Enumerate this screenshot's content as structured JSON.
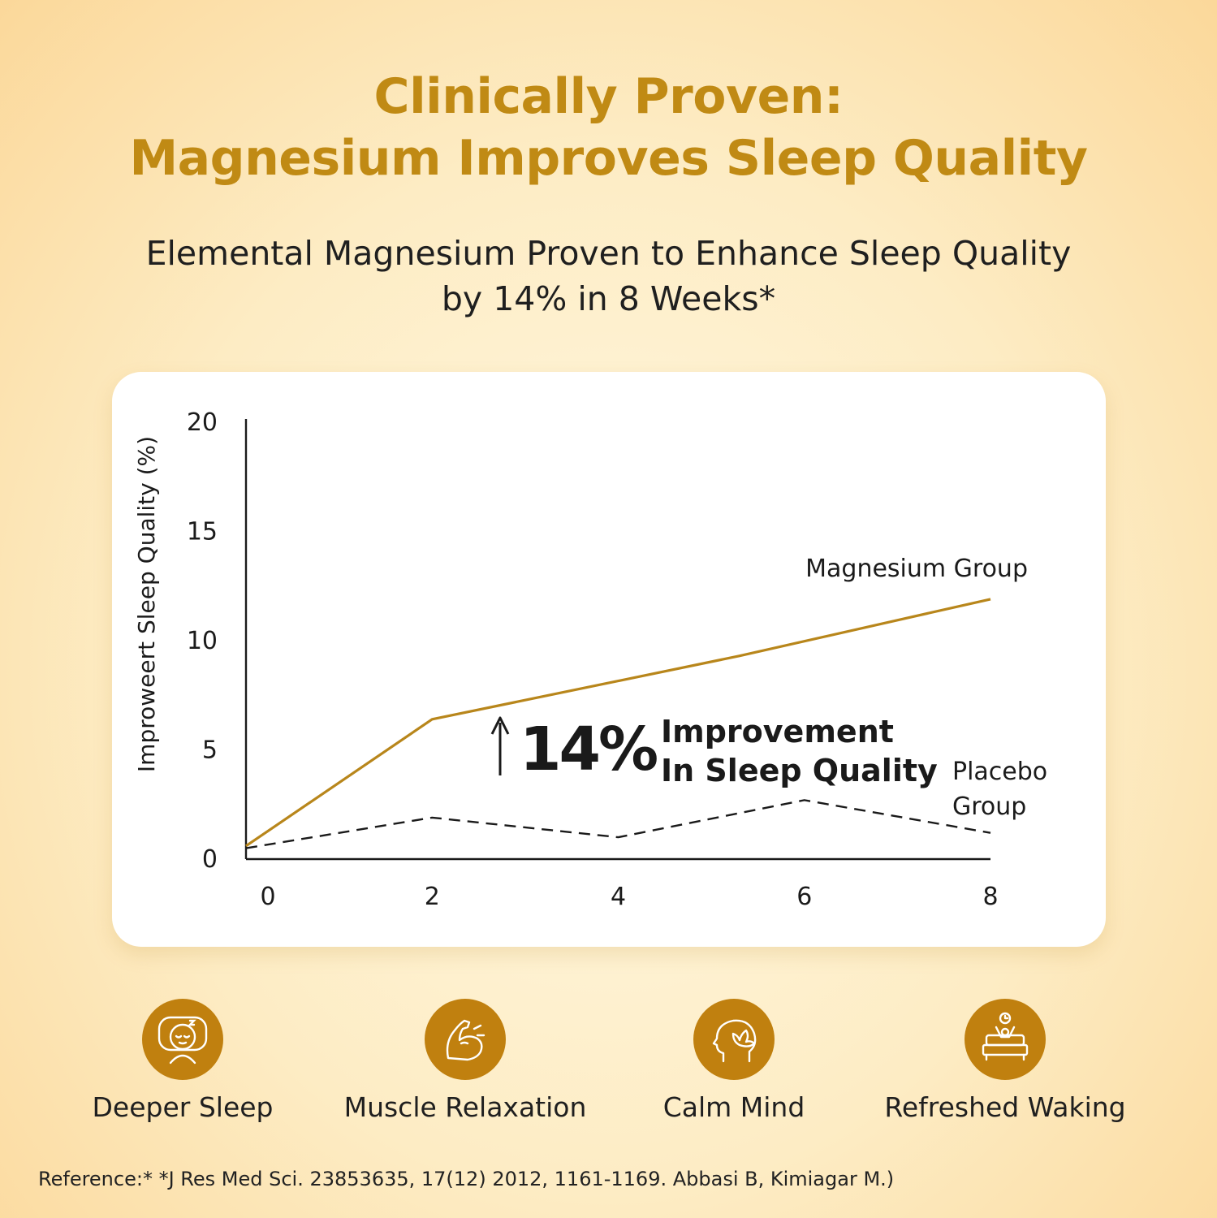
{
  "header": {
    "title_line1": "Clinically Proven:",
    "title_line2": "Magnesium Improves Sleep Quality",
    "subtitle_line1": "Elemental Magnesium Proven to Enhance Sleep Quality",
    "subtitle_line2": "by 14% in 8 Weeks*"
  },
  "chart_data": {
    "type": "line",
    "ylabel": "Improweert Sleep Quality (%)",
    "xlabel": "",
    "ylim": [
      0,
      20
    ],
    "xlim": [
      0,
      8
    ],
    "yticks": [
      "0",
      "5",
      "10",
      "15",
      "20"
    ],
    "xticks": [
      "0",
      "2",
      "4",
      "6",
      "8"
    ],
    "grid": false,
    "series": [
      {
        "name": "Magnesium Group",
        "style": "solid",
        "color": "#b8861b",
        "x": [
          0,
          2,
          5.3,
          8
        ],
        "y": [
          0.6,
          6.4,
          9.3,
          11.9
        ]
      },
      {
        "name": "Placebo Group",
        "name_lines": [
          "Placebo",
          "Group"
        ],
        "style": "dashed",
        "color": "#1a1a1a",
        "x": [
          0,
          2,
          4,
          6,
          8
        ],
        "y": [
          0.5,
          1.9,
          1.0,
          2.7,
          1.2
        ]
      }
    ],
    "annotation": {
      "arrow": "↑",
      "value": "14%",
      "text_line1": "Improvement",
      "text_line2": "In Sleep Quality"
    }
  },
  "benefits": [
    {
      "label": "Deeper Sleep",
      "icon": "sleeping-face-icon"
    },
    {
      "label": "Muscle Relaxation",
      "icon": "flexed-arm-icon"
    },
    {
      "label": "Calm Mind",
      "icon": "lotus-head-icon"
    },
    {
      "label": "Refreshed Waking",
      "icon": "alarm-bed-icon"
    }
  ],
  "colors": {
    "accent": "#c08a14",
    "icon_circle": "#c0800f",
    "magnesium_line": "#b8861b"
  },
  "footer": {
    "reference": "Reference:* *J Res Med Sci. 23853635, 17(12) 2012, 1161-1169. Abbasi B, Kimiagar M.)"
  }
}
